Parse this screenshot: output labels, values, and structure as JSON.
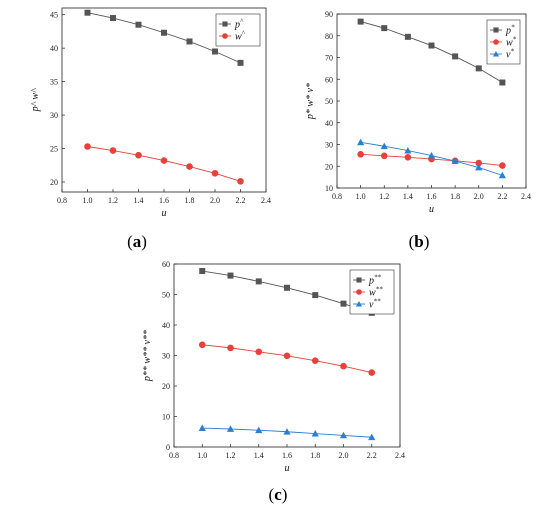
{
  "chart_data": [
    {
      "type": "line",
      "panel_label": "a",
      "xlabel": "u",
      "ylabel": "p^ w^",
      "xlim": [
        0.8,
        2.4
      ],
      "ylim": [
        18.5,
        46
      ],
      "xticks": [
        "0.8",
        "1.0",
        "1.2",
        "1.4",
        "1.6",
        "1.8",
        "2.0",
        "2.2",
        "2.4"
      ],
      "yticks": [
        "20",
        "25",
        "30",
        "35",
        "40",
        "45"
      ],
      "x": [
        1.0,
        1.2,
        1.4,
        1.6,
        1.8,
        2.0,
        2.2
      ],
      "series": [
        {
          "name": "p",
          "sup": "^",
          "color": "#555555",
          "marker": "square",
          "values": [
            45.3,
            44.5,
            43.5,
            42.3,
            41.0,
            39.5,
            37.8
          ]
        },
        {
          "name": "w",
          "sup": "^",
          "color": "#e8403a",
          "marker": "circle",
          "values": [
            25.3,
            24.7,
            24.0,
            23.2,
            22.3,
            21.3,
            20.1
          ]
        }
      ],
      "grid": false,
      "legend": "top-right"
    },
    {
      "type": "line",
      "panel_label": "b",
      "xlabel": "u",
      "ylabel": "p* w* v*",
      "xlim": [
        0.8,
        2.4
      ],
      "ylim": [
        10,
        90
      ],
      "xticks": [
        "0.8",
        "1.0",
        "1.2",
        "1.4",
        "1.6",
        "1.8",
        "2.0",
        "2.2",
        "2.4"
      ],
      "yticks": [
        "10",
        "20",
        "30",
        "40",
        "50",
        "60",
        "70",
        "80",
        "90"
      ],
      "x": [
        1.0,
        1.2,
        1.4,
        1.6,
        1.8,
        2.0,
        2.2
      ],
      "series": [
        {
          "name": "p",
          "sup": "*",
          "color": "#555555",
          "marker": "square",
          "values": [
            86.5,
            83.5,
            79.5,
            75.5,
            70.5,
            65.0,
            58.5
          ]
        },
        {
          "name": "w",
          "sup": "*",
          "color": "#e8403a",
          "marker": "circle",
          "values": [
            25.5,
            24.8,
            24.1,
            23.3,
            22.5,
            21.5,
            20.3
          ]
        },
        {
          "name": "v",
          "sup": "*",
          "color": "#2a7fd4",
          "marker": "triangle",
          "values": [
            31.0,
            29.2,
            27.2,
            24.9,
            22.4,
            19.4,
            15.8
          ]
        }
      ],
      "grid": false,
      "legend": "top-right"
    },
    {
      "type": "line",
      "panel_label": "c",
      "xlabel": "u",
      "ylabel": "p** w** v**",
      "xlim": [
        0.8,
        2.4
      ],
      "ylim": [
        0,
        60
      ],
      "xticks": [
        "0.8",
        "1.0",
        "1.2",
        "1.4",
        "1.6",
        "1.8",
        "2.0",
        "2.2",
        "2.4"
      ],
      "yticks": [
        "0",
        "10",
        "20",
        "30",
        "40",
        "50",
        "60"
      ],
      "x": [
        1.0,
        1.2,
        1.4,
        1.6,
        1.8,
        2.0,
        2.2
      ],
      "series": [
        {
          "name": "p",
          "sup": "**",
          "color": "#555555",
          "marker": "square",
          "values": [
            57.7,
            56.2,
            54.3,
            52.2,
            49.8,
            47.0,
            44.0
          ]
        },
        {
          "name": "w",
          "sup": "**",
          "color": "#e8403a",
          "marker": "circle",
          "values": [
            33.5,
            32.5,
            31.2,
            29.9,
            28.3,
            26.5,
            24.4
          ]
        },
        {
          "name": "v",
          "sup": "**",
          "color": "#2a7fd4",
          "marker": "triangle",
          "values": [
            6.2,
            5.9,
            5.5,
            5.0,
            4.4,
            3.8,
            3.2
          ]
        }
      ],
      "grid": false,
      "legend": "top-right"
    }
  ]
}
